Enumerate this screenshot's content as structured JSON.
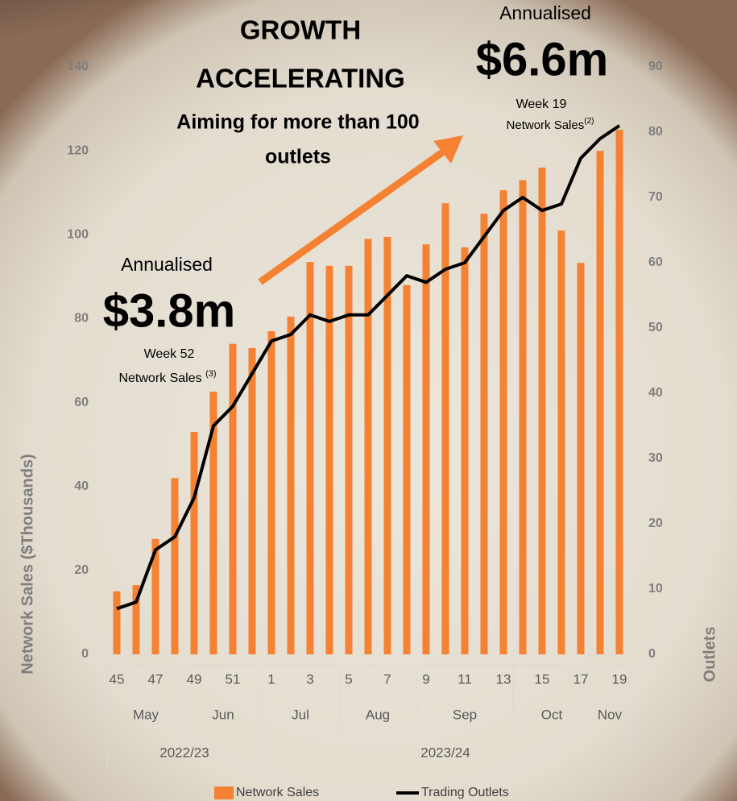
{
  "chart_data": {
    "type": "bar",
    "title": [
      "GROWTH",
      "ACCELERATING"
    ],
    "subtitle": [
      "Aiming for more than 100",
      "outlets"
    ],
    "annotations": [
      {
        "top": "Annualised",
        "value": "$3.8m",
        "week": "Week 52",
        "note": "Network Sales ",
        "ref": "(3)"
      },
      {
        "top": "Annualised",
        "value": "$6.6m",
        "week": "Week 19",
        "note": "Network Sales",
        "ref": "(2)"
      }
    ],
    "ylabel": "Network Sales ($Thousands)",
    "y2label": "Outlets",
    "categories": [
      "45",
      null,
      "47",
      null,
      "49",
      null,
      "51",
      null,
      "1",
      null,
      "3",
      null,
      "5",
      null,
      "7",
      null,
      "9",
      null,
      "11",
      null,
      "13",
      null,
      "15",
      null,
      "17",
      null,
      "19"
    ],
    "month_groups": [
      {
        "label": "May",
        "count": 4
      },
      {
        "label": "Jun",
        "count": 4
      },
      {
        "label": "Jul",
        "count": 4
      },
      {
        "label": "Aug",
        "count": 4
      },
      {
        "label": "Sep",
        "count": 5
      },
      {
        "label": "Oct",
        "count": 4
      },
      {
        "label": "Nov",
        "count": 2
      }
    ],
    "year_groups": [
      {
        "label": "2022/23",
        "count": 8
      },
      {
        "label": "2023/24",
        "count": 19
      }
    ],
    "series": [
      {
        "name": "Network Sales",
        "type": "bar",
        "color": "#f58232",
        "axis": "y",
        "values": [
          15,
          16.5,
          27.5,
          42,
          53,
          62.6,
          74,
          73,
          77,
          80.5,
          93.5,
          92.6,
          92.6,
          99,
          99.5,
          88,
          97.7,
          107.5,
          97,
          105,
          110.6,
          113,
          116,
          101,
          93.3,
          120,
          125
        ]
      },
      {
        "name": "Trading Outlets",
        "type": "line",
        "color": "#000000",
        "axis": "y2",
        "values": [
          7,
          8,
          16,
          18,
          24,
          35,
          38,
          43,
          48,
          49,
          52,
          51,
          52,
          52,
          55,
          58,
          57,
          59,
          60,
          64,
          68,
          70,
          68,
          69,
          76,
          79,
          81
        ]
      }
    ],
    "ylim": [
      0,
      140
    ],
    "yticks": [
      0,
      20,
      40,
      60,
      80,
      100,
      120,
      140
    ],
    "y2lim": [
      0,
      90
    ],
    "y2ticks": [
      0,
      10,
      20,
      30,
      40,
      50,
      60,
      70,
      80,
      90
    ],
    "legend": "bottom"
  }
}
